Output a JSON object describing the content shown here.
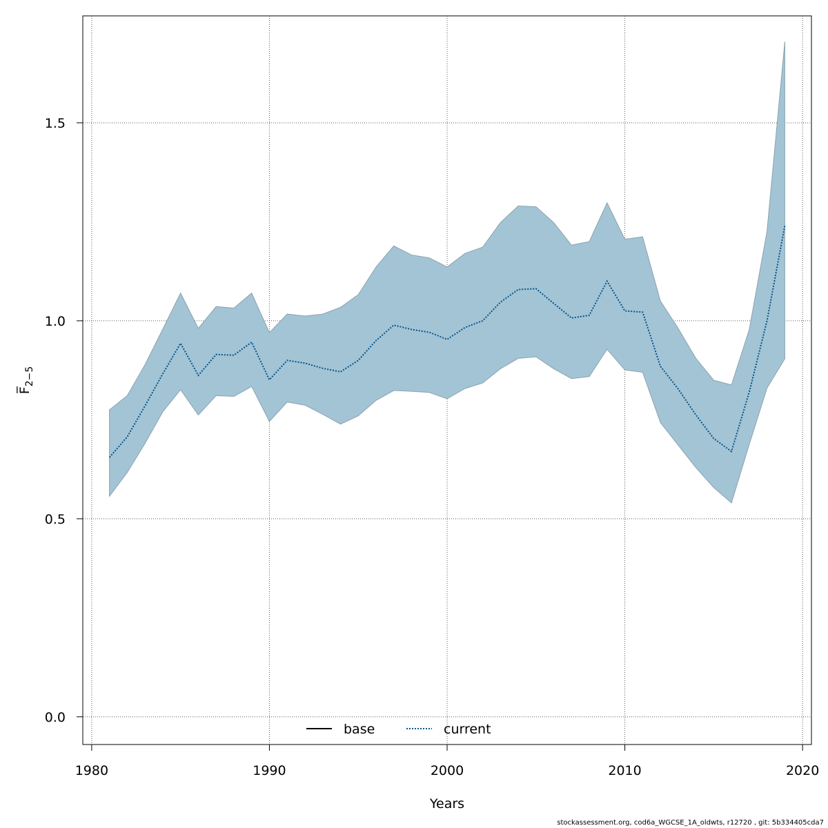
{
  "chart_data": {
    "type": "line",
    "title": "",
    "xlabel": "Years",
    "ylabel": "F̅",
    "ylabel_subscript": "2−5",
    "xlim": [
      1979.5,
      2020.5
    ],
    "ylim": [
      -0.07,
      1.77
    ],
    "x_ticks": [
      1980,
      1990,
      2000,
      2010,
      2020
    ],
    "x_tick_labels": [
      "1980",
      "1990",
      "2000",
      "2010",
      "2020"
    ],
    "y_ticks": [
      0.0,
      0.5,
      1.0,
      1.5
    ],
    "y_tick_labels": [
      "0.0",
      "0.5",
      "1.0",
      "1.5"
    ],
    "grid": true,
    "legend_position": "bottom-center",
    "legend": [
      {
        "label": "base",
        "style": "solid",
        "color": "#000000"
      },
      {
        "label": "current",
        "style": "dotted",
        "color": "#00538a"
      }
    ],
    "x": [
      1981,
      1982,
      1983,
      1984,
      1985,
      1986,
      1987,
      1988,
      1989,
      1990,
      1991,
      1992,
      1993,
      1994,
      1995,
      1996,
      1997,
      1998,
      1999,
      2000,
      2001,
      2002,
      2003,
      2004,
      2005,
      2006,
      2007,
      2008,
      2009,
      2010,
      2011,
      2012,
      2013,
      2014,
      2015,
      2016,
      2017,
      2018,
      2019
    ],
    "series": [
      {
        "name": "current",
        "line_style": "dotted",
        "color": "#00538a",
        "values": [
          0.655,
          0.707,
          0.785,
          0.866,
          0.943,
          0.862,
          0.915,
          0.913,
          0.946,
          0.851,
          0.9,
          0.893,
          0.88,
          0.871,
          0.9,
          0.95,
          0.989,
          0.978,
          0.971,
          0.953,
          0.983,
          1.0,
          1.047,
          1.079,
          1.081,
          1.044,
          1.007,
          1.014,
          1.1,
          1.025,
          1.022,
          0.885,
          0.828,
          0.762,
          0.703,
          0.67,
          0.82,
          1.0,
          1.24
        ]
      }
    ],
    "band": {
      "color": "#a3c4d5",
      "lower": [
        0.557,
        0.617,
        0.69,
        0.77,
        0.826,
        0.762,
        0.811,
        0.809,
        0.834,
        0.746,
        0.795,
        0.787,
        0.764,
        0.739,
        0.76,
        0.799,
        0.824,
        0.822,
        0.819,
        0.803,
        0.829,
        0.843,
        0.879,
        0.905,
        0.909,
        0.879,
        0.854,
        0.859,
        0.928,
        0.876,
        0.87,
        0.743,
        0.686,
        0.629,
        0.579,
        0.54,
        0.688,
        0.83,
        0.904
      ],
      "upper": [
        0.775,
        0.811,
        0.889,
        0.979,
        1.07,
        0.981,
        1.036,
        1.032,
        1.07,
        0.97,
        1.017,
        1.012,
        1.017,
        1.034,
        1.066,
        1.136,
        1.189,
        1.166,
        1.159,
        1.136,
        1.17,
        1.186,
        1.248,
        1.29,
        1.288,
        1.248,
        1.191,
        1.2,
        1.298,
        1.206,
        1.212,
        1.05,
        0.981,
        0.905,
        0.85,
        0.838,
        0.978,
        1.226,
        1.705
      ]
    }
  },
  "footer": "stockassessment.org, cod6a_WGCSE_1A_oldwts, r12720 , git: 5b334405cda7"
}
